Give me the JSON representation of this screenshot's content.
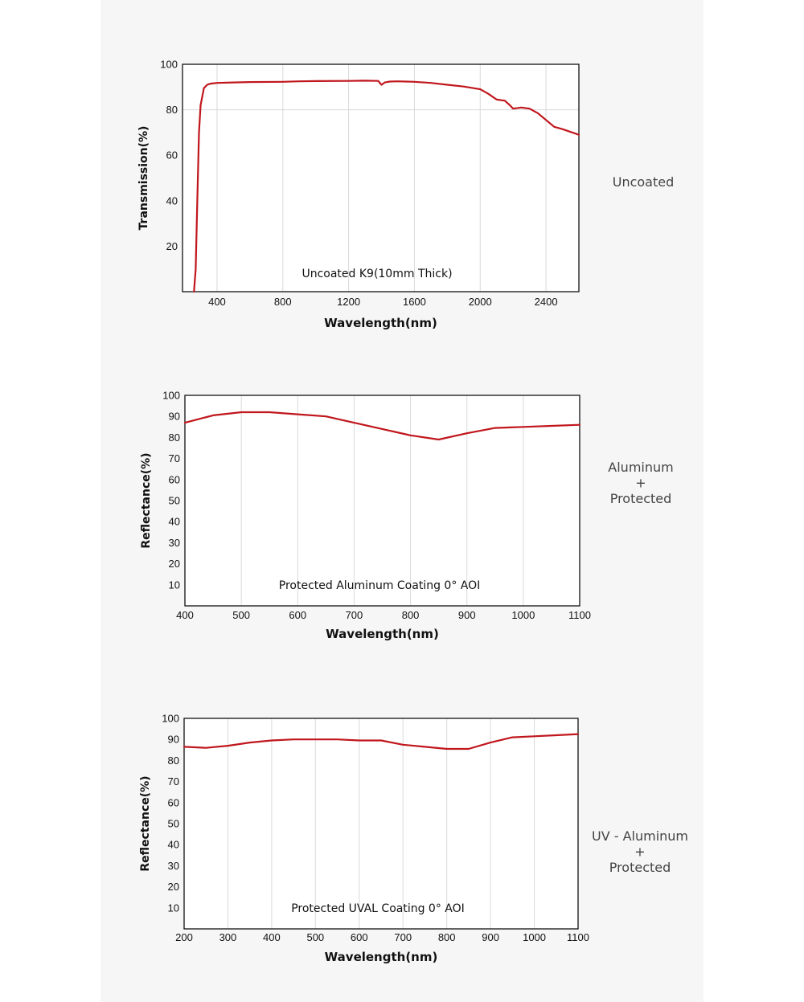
{
  "chart_data": [
    {
      "type": "line",
      "side_label": [
        "Uncoated"
      ],
      "annotation": "Uncoated K9(10mm Thick)",
      "xlabel": "Wavelength(nm)",
      "ylabel": "Transmission(%)",
      "xlim": [
        190,
        2600
      ],
      "ylim": [
        0,
        100
      ],
      "xticks": [
        400,
        800,
        1200,
        1600,
        2000,
        2400
      ],
      "yticks": [
        20,
        40,
        60,
        80,
        100
      ],
      "grid_x": [
        400,
        800,
        1200,
        1600,
        2000,
        2400
      ],
      "grid_y": [
        80
      ],
      "color": "#c0161c",
      "series": [
        {
          "name": "Uncoated K9",
          "x": [
            260,
            270,
            280,
            290,
            300,
            320,
            340,
            360,
            400,
            500,
            600,
            800,
            900,
            1000,
            1200,
            1300,
            1380,
            1400,
            1420,
            1450,
            1500,
            1600,
            1700,
            1800,
            1900,
            2000,
            2050,
            2100,
            2150,
            2180,
            2200,
            2250,
            2300,
            2350,
            2400,
            2450,
            2500,
            2600
          ],
          "y": [
            0,
            10,
            40,
            70,
            82,
            89.5,
            91,
            91.5,
            91.8,
            92,
            92.2,
            92.3,
            92.5,
            92.6,
            92.7,
            92.8,
            92.7,
            91,
            92,
            92.4,
            92.5,
            92.3,
            91.8,
            91,
            90.2,
            89,
            87,
            84.5,
            84,
            82,
            80.5,
            81,
            80.5,
            78.5,
            75.5,
            72.5,
            71.5,
            69
          ]
        }
      ]
    },
    {
      "type": "line",
      "side_label": [
        "Aluminum",
        "+",
        "Protected"
      ],
      "annotation": "Protected Aluminum Coating  0°  AOI",
      "xlabel": "Wavelength(nm)",
      "ylabel": "Reflectance(%)",
      "xlim": [
        400,
        1100
      ],
      "ylim": [
        0,
        100
      ],
      "xticks": [
        400,
        500,
        600,
        700,
        800,
        900,
        1000,
        1100
      ],
      "yticks": [
        10,
        20,
        30,
        40,
        50,
        60,
        70,
        80,
        90,
        100
      ],
      "grid_x": [
        500,
        600,
        700,
        800,
        900,
        1000
      ],
      "grid_y": [],
      "color": "#c0161c",
      "series": [
        {
          "name": "Protected Aluminum",
          "x": [
            400,
            450,
            500,
            550,
            600,
            650,
            700,
            750,
            800,
            850,
            900,
            950,
            1000,
            1050,
            1100
          ],
          "y": [
            87,
            90.5,
            92,
            92,
            91,
            90,
            87,
            84,
            81,
            79,
            82,
            84.5,
            85,
            85.5,
            86
          ]
        }
      ]
    },
    {
      "type": "line",
      "side_label": [
        "UV - Aluminum",
        "+",
        "Protected"
      ],
      "annotation": "Protected UVAL Coating  0°  AOI",
      "xlabel": "Wavelength(nm)",
      "ylabel": "Reflectance(%)",
      "xlim": [
        200,
        1100
      ],
      "ylim": [
        0,
        100
      ],
      "xticks": [
        200,
        300,
        400,
        500,
        600,
        700,
        800,
        900,
        1000,
        1100
      ],
      "yticks": [
        10,
        20,
        30,
        40,
        50,
        60,
        70,
        80,
        90,
        100
      ],
      "grid_x": [
        300,
        400,
        500,
        600,
        700,
        800,
        900,
        1000
      ],
      "grid_y": [],
      "color": "#c0161c",
      "series": [
        {
          "name": "Protected UVAL",
          "x": [
            200,
            250,
            300,
            350,
            400,
            450,
            500,
            550,
            600,
            650,
            700,
            750,
            800,
            850,
            900,
            950,
            1000,
            1050,
            1100
          ],
          "y": [
            86.5,
            86,
            87,
            88.5,
            89.5,
            90,
            90,
            90,
            89.5,
            89.5,
            87.5,
            86.5,
            85.5,
            85.5,
            88.5,
            91,
            91.5,
            92,
            92.5
          ]
        }
      ]
    }
  ]
}
